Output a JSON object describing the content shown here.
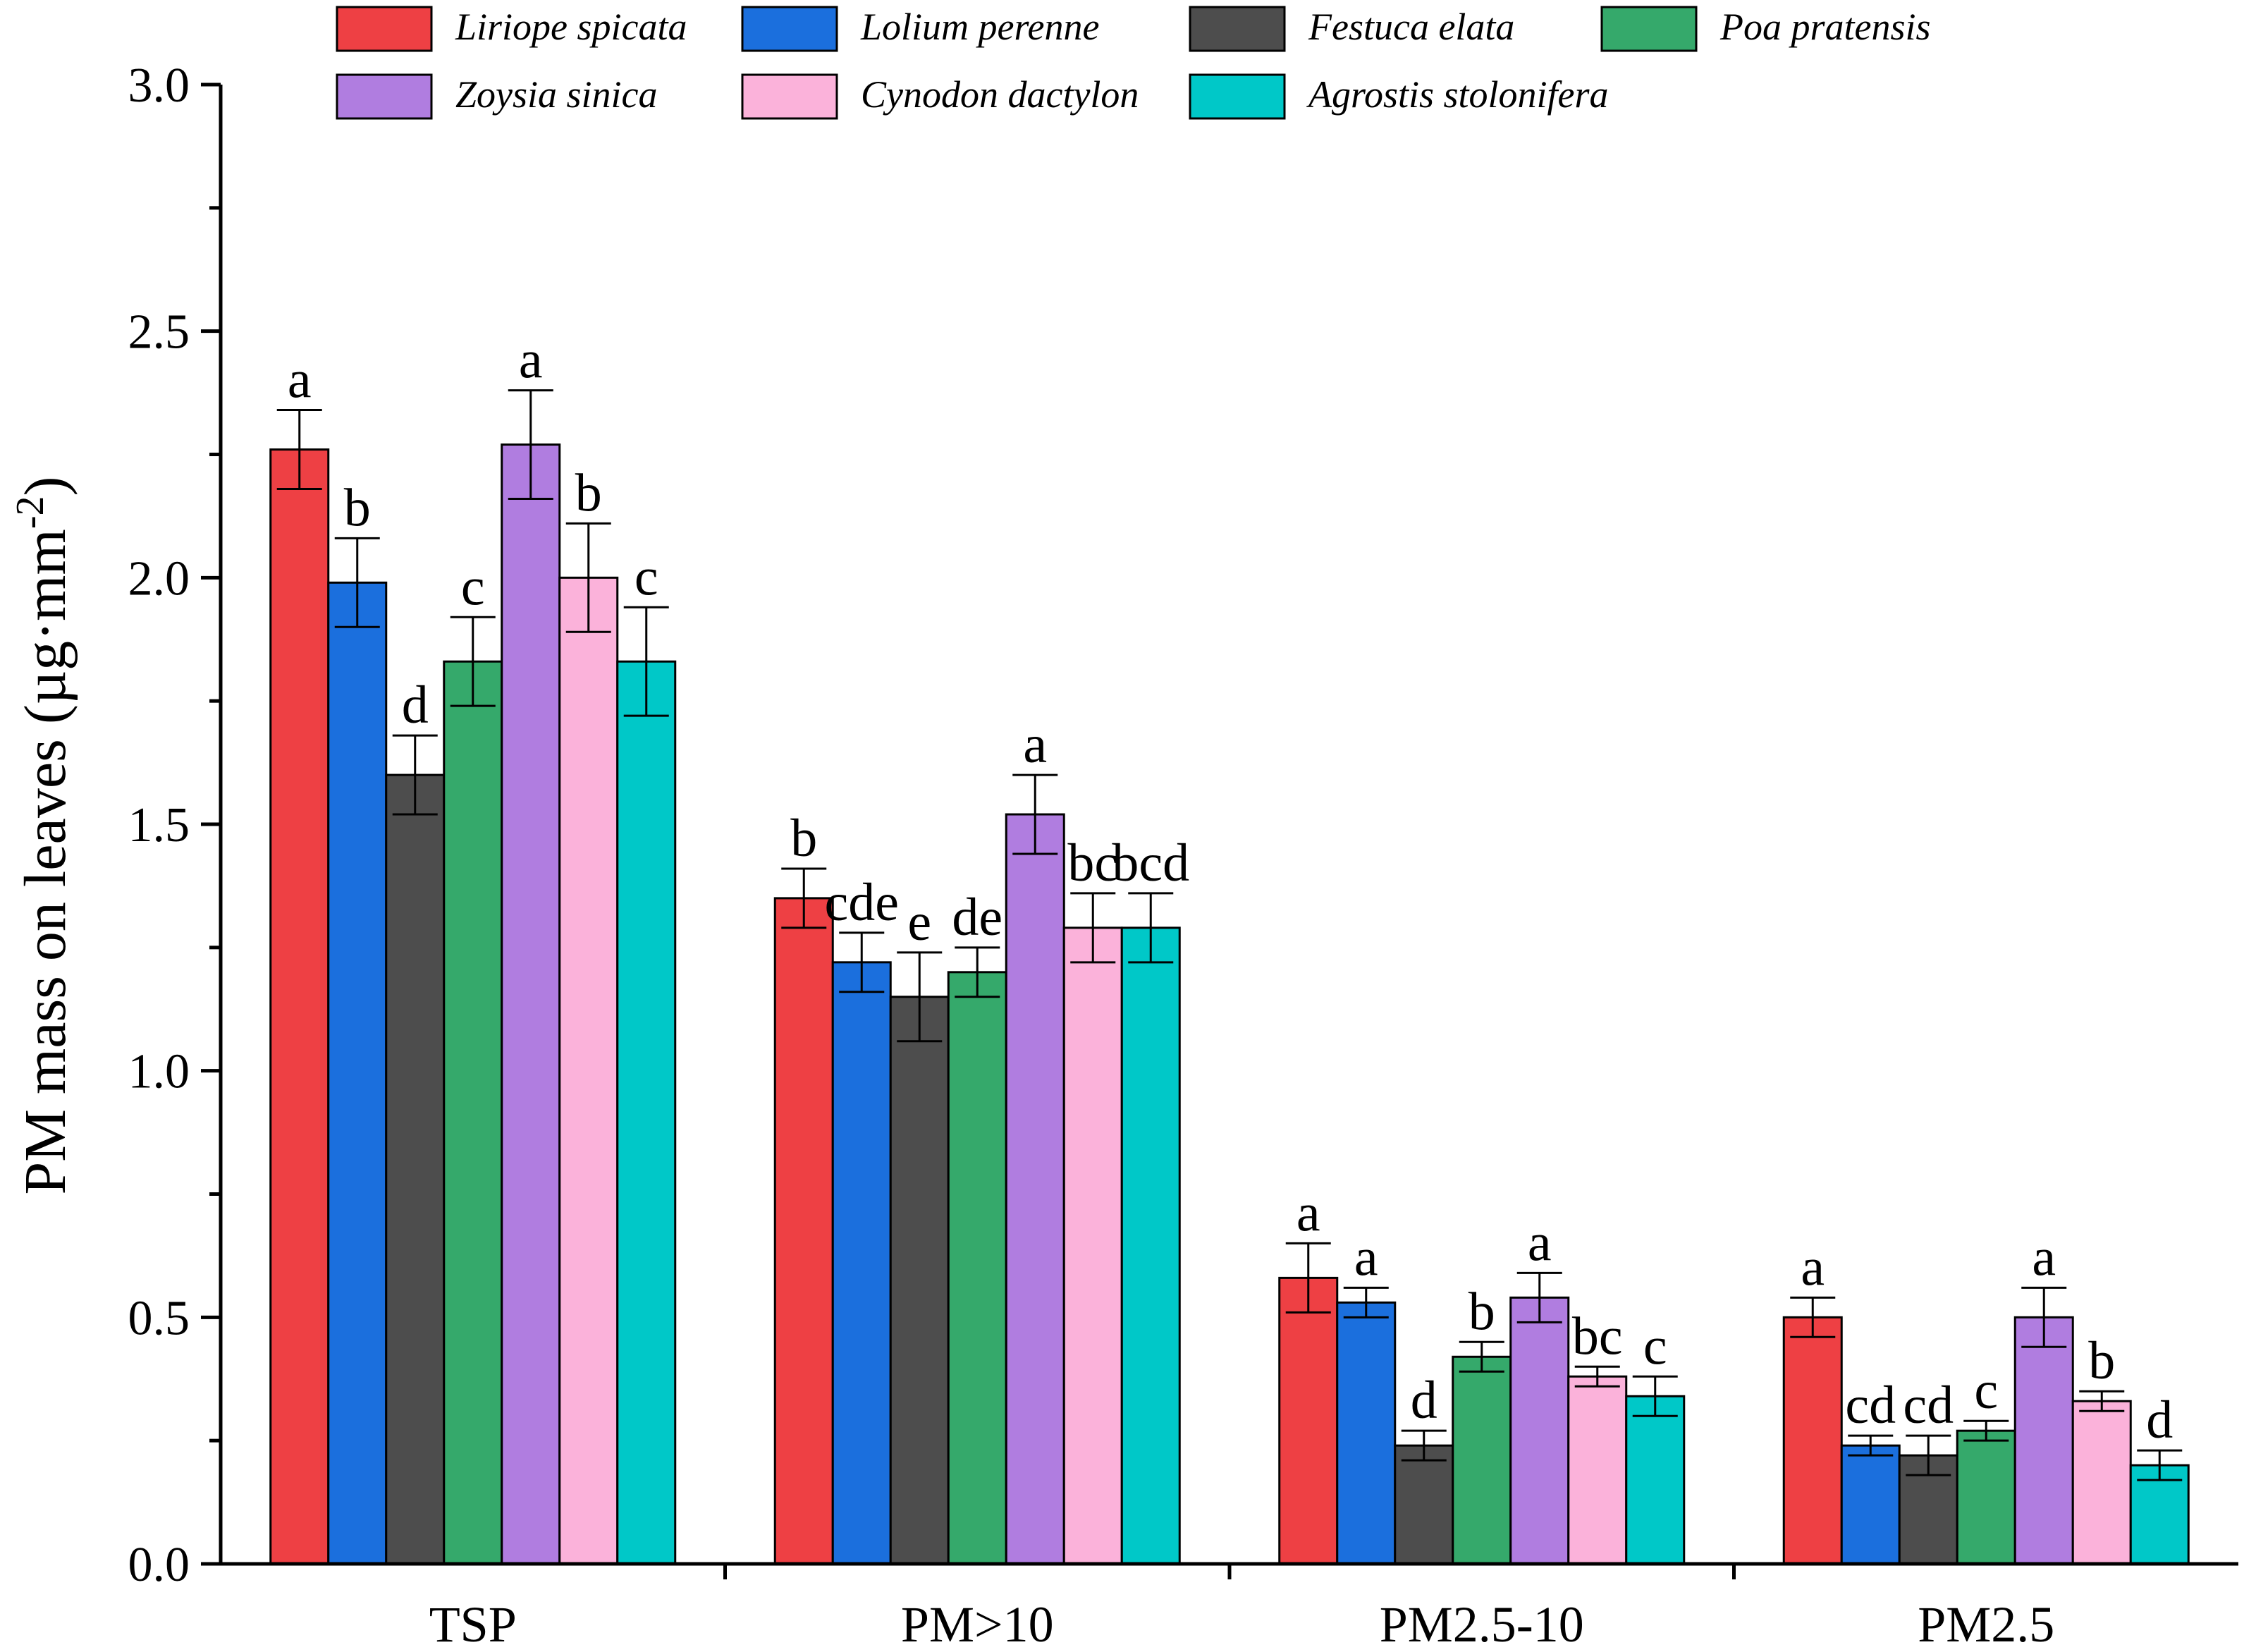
{
  "chart_data": {
    "type": "bar",
    "title": "",
    "xlabel": "",
    "ylabel": "PM mass on leaves (µg·mm",
    "ylabel_superscript": "-2",
    "ylabel_suffix": ")",
    "ylim": [
      0.0,
      3.0
    ],
    "yticks": [
      "0.0",
      "0.5",
      "1.0",
      "1.5",
      "2.0",
      "2.5",
      "3.0"
    ],
    "categories": [
      "TSP",
      "PM>10",
      "PM2.5-10",
      "PM2.5"
    ],
    "legend_position": "top",
    "series": [
      {
        "name": "Liriope spicata",
        "color": "#ee4044",
        "values": [
          2.26,
          1.35,
          0.58,
          0.5
        ],
        "errors": [
          0.08,
          0.06,
          0.07,
          0.04
        ],
        "letters": [
          "a",
          "b",
          "a",
          "a"
        ]
      },
      {
        "name": "Lolium perenne",
        "color": "#1b6fdd",
        "values": [
          1.99,
          1.22,
          0.53,
          0.24
        ],
        "errors": [
          0.09,
          0.06,
          0.03,
          0.02
        ],
        "letters": [
          "b",
          "cde",
          "a",
          "cd"
        ]
      },
      {
        "name": "Festuca elata",
        "color": "#4d4d4d",
        "values": [
          1.6,
          1.15,
          0.24,
          0.22
        ],
        "errors": [
          0.08,
          0.09,
          0.03,
          0.04
        ],
        "letters": [
          "d",
          "e",
          "d",
          "cd"
        ]
      },
      {
        "name": "Poa pratensis",
        "color": "#35a96b",
        "values": [
          1.83,
          1.2,
          0.42,
          0.27
        ],
        "errors": [
          0.09,
          0.05,
          0.03,
          0.02
        ],
        "letters": [
          "c",
          "de",
          "b",
          "c"
        ]
      },
      {
        "name": "Zoysia sinica",
        "color": "#b07de0",
        "values": [
          2.27,
          1.52,
          0.54,
          0.5
        ],
        "errors": [
          0.11,
          0.08,
          0.05,
          0.06
        ],
        "letters": [
          "a",
          "a",
          "a",
          "a"
        ]
      },
      {
        "name": "Cynodon dactylon",
        "color": "#fbb2da",
        "values": [
          2.0,
          1.29,
          0.38,
          0.33
        ],
        "errors": [
          0.11,
          0.07,
          0.02,
          0.02
        ],
        "letters": [
          "b",
          "bc",
          "bc",
          "b"
        ]
      },
      {
        "name": "Agrostis stolonifera",
        "color": "#00c8c8",
        "values": [
          1.83,
          1.29,
          0.34,
          0.2
        ],
        "errors": [
          0.11,
          0.07,
          0.04,
          0.03
        ],
        "letters": [
          "c",
          "bcd",
          "c",
          "d"
        ]
      }
    ]
  }
}
